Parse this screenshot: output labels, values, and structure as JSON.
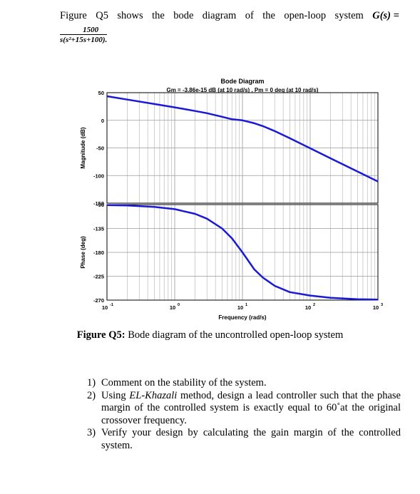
{
  "intro": {
    "words": [
      "Figure",
      "Q5",
      "shows",
      "the",
      "bode",
      "diagram",
      "of",
      "the",
      "open-loop",
      "system"
    ],
    "equation": "G(s) =",
    "numerator": "1500",
    "denominator": "s(s²+15s+100)",
    "end": "."
  },
  "chart_data": {
    "type": "line",
    "title": "Bode Diagram",
    "subtitle": "Gm = -3.86e-15 dB (at 10 rad/s) ,  Pm = 0 deg (at 10 rad/s)",
    "xlabel": "Frequency  (rad/s)",
    "x_scale": "log",
    "xlim": [
      0.1,
      1000
    ],
    "x_ticks": [
      "10",
      "10",
      "10",
      "10",
      "10"
    ],
    "x_tick_exponents": [
      "-1",
      "0",
      "1",
      "2",
      "3"
    ],
    "grid": true,
    "panels": [
      {
        "ylabel": "Magnitude (dB)",
        "ylim": [
          -150,
          50
        ],
        "y_ticks": [
          "50",
          "0",
          "-50",
          "-100",
          "-150"
        ],
        "series": [
          {
            "color": "#1a1ad6",
            "x": [
              0.1,
              0.2,
              0.5,
              1,
              2,
              3,
              5,
              7,
              10,
              15,
              20,
              30,
              50,
              100,
              200,
              500,
              1000
            ],
            "y": [
              43.5,
              37.5,
              29.5,
              23.4,
              16.9,
              12.8,
              6.4,
              1.9,
              0,
              -5.3,
              -10.5,
              -19.6,
              -32.5,
              -50.7,
              -68.8,
              -92.7,
              -110.8
            ]
          }
        ]
      },
      {
        "ylabel": "Phase (deg)",
        "ylim": [
          -270,
          -90
        ],
        "y_ticks": [
          "-90",
          "-135",
          "-180",
          "-225",
          "-270"
        ],
        "series": [
          {
            "color": "#1a1ad6",
            "x": [
              0.1,
              0.2,
              0.5,
              1,
              2,
              3,
              5,
              7,
              10,
              15,
              20,
              30,
              50,
              100,
              200,
              500,
              1000
            ],
            "y": [
              -90.9,
              -91.7,
              -94.3,
              -98.6,
              -107.4,
              -116.6,
              -135,
              -153.7,
              -180,
              -212.2,
              -227.5,
              -243.2,
              -254.9,
              -261.4,
              -265.7,
              -268.3,
              -269.1
            ]
          }
        ]
      }
    ]
  },
  "caption": {
    "label": "Figure Q5:",
    "text": " Bode diagram of the uncontrolled open-loop system"
  },
  "questions": [
    {
      "number": "1)",
      "text": "Comment on the stability of the system."
    },
    {
      "number": "2)",
      "pre": "Using ",
      "method": "EL-Khazali",
      "post": " method, design a lead controller such that the phase margin of the controlled system is exactly equal to 60˚at the original crossover frequency."
    },
    {
      "number": "3)",
      "text": "Verify your design by calculating the gain margin of the controlled system."
    }
  ]
}
